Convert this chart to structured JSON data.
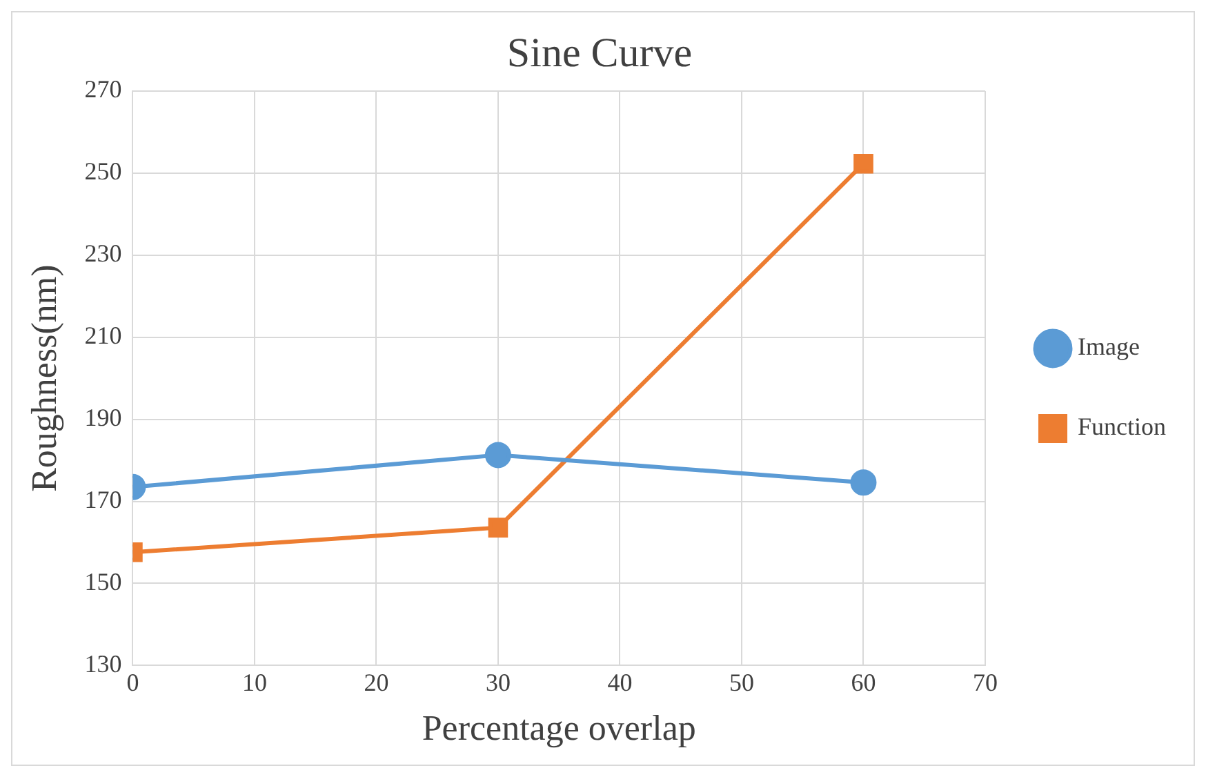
{
  "chart_data": {
    "type": "line",
    "title": "Sine Curve",
    "xlabel": "Percentage overlap",
    "ylabel": "Roughness(nm)",
    "xlim": [
      0,
      70
    ],
    "xticks": [
      0,
      10,
      20,
      30,
      40,
      50,
      60,
      70
    ],
    "ylim": [
      130,
      270
    ],
    "yticks": [
      130,
      150,
      170,
      190,
      210,
      230,
      250,
      270
    ],
    "grid": true,
    "legend": "right",
    "line_style": "solid",
    "series": [
      {
        "name": "Image",
        "color": "#5b9bd5",
        "marker": "circle",
        "x": [
          0,
          30,
          60
        ],
        "values": [
          173.5,
          181.3,
          174.6
        ]
      },
      {
        "name": "Function",
        "color": "#ed7d31",
        "marker": "square",
        "x": [
          0,
          30,
          60
        ],
        "values": [
          157.6,
          163.6,
          252.3
        ]
      }
    ]
  }
}
